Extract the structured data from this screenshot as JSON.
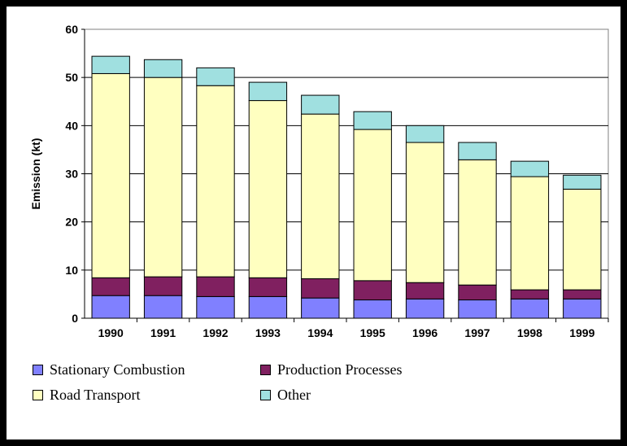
{
  "chart_data": {
    "type": "bar",
    "stacked": true,
    "title": "",
    "xlabel": "",
    "ylabel": "Emission (kt)",
    "ylim": [
      0,
      60
    ],
    "yticks": [
      0,
      10,
      20,
      30,
      40,
      50,
      60
    ],
    "grid": true,
    "legend_position": "bottom",
    "categories": [
      "1990",
      "1991",
      "1992",
      "1993",
      "1994",
      "1995",
      "1996",
      "1997",
      "1998",
      "1999"
    ],
    "series": [
      {
        "name": "Stationary Combustion",
        "color": "#8080FF",
        "values": [
          4.7,
          4.7,
          4.5,
          4.5,
          4.2,
          3.8,
          4.0,
          3.8,
          4.0,
          4.0
        ]
      },
      {
        "name": "Production Processes",
        "color": "#802060",
        "values": [
          3.7,
          3.9,
          4.1,
          3.9,
          4.0,
          4.0,
          3.4,
          3.1,
          1.9,
          1.9
        ]
      },
      {
        "name": "Road Transport",
        "color": "#FFFFC0",
        "values": [
          42.4,
          41.4,
          39.7,
          36.8,
          34.2,
          31.4,
          29.1,
          26.0,
          23.5,
          20.9
        ]
      },
      {
        "name": "Other",
        "color": "#A0E0E0",
        "values": [
          3.6,
          3.7,
          3.7,
          3.8,
          3.9,
          3.7,
          3.5,
          3.6,
          3.2,
          2.9
        ]
      }
    ]
  }
}
